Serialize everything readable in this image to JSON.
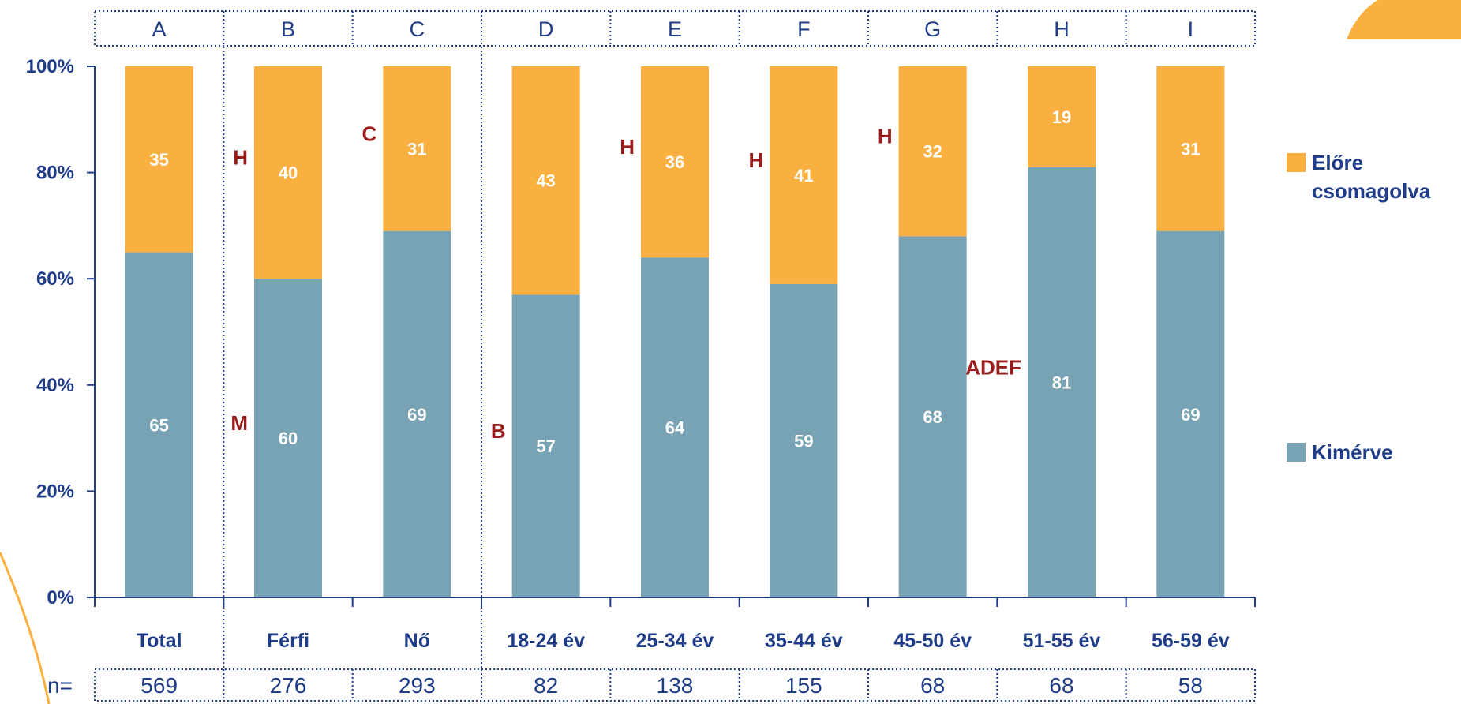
{
  "colors": {
    "prepacked": "#F9B040",
    "measured": "#78A3B5",
    "axis": "#1F3C88",
    "significance": "#9B1C1C",
    "accent": "#F9B040"
  },
  "chart_data": {
    "type": "bar",
    "stacked": true,
    "percent_scale": true,
    "column_letters": [
      "A",
      "B",
      "C",
      "D",
      "E",
      "F",
      "G",
      "H",
      "I"
    ],
    "categories": [
      "Total",
      "Férfi",
      "Nő",
      "18-24 év",
      "25-34 év",
      "35-44 év",
      "45-50 év",
      "51-55 év",
      "56-59 év"
    ],
    "series": [
      {
        "name": "Kimérve",
        "values": [
          65,
          60,
          69,
          57,
          64,
          59,
          68,
          81,
          69
        ]
      },
      {
        "name": "Előre csomagolva",
        "values": [
          35,
          40,
          31,
          43,
          36,
          41,
          32,
          19,
          31
        ]
      }
    ],
    "ytick_labels": [
      "0%",
      "20%",
      "40%",
      "60%",
      "80%",
      "100%"
    ],
    "ylim": [
      0,
      100
    ],
    "n_label": "n=",
    "n_values": [
      "569",
      "276",
      "293",
      "82",
      "138",
      "155",
      "68",
      "68",
      "58"
    ],
    "significance": {
      "Kimérve": [
        "",
        "M",
        "",
        "B",
        "",
        "",
        "",
        "ADEF",
        ""
      ],
      "Előre csomagolva": [
        "",
        "H",
        "C",
        "",
        "H",
        "H",
        "H",
        "",
        ""
      ]
    },
    "legend": [
      {
        "series": "Előre csomagolva",
        "lines": [
          "Előre",
          "csomagolva"
        ]
      },
      {
        "series": "Kimérve",
        "lines": [
          "Kimérve"
        ]
      }
    ],
    "legend_position": "right",
    "grid": false
  }
}
